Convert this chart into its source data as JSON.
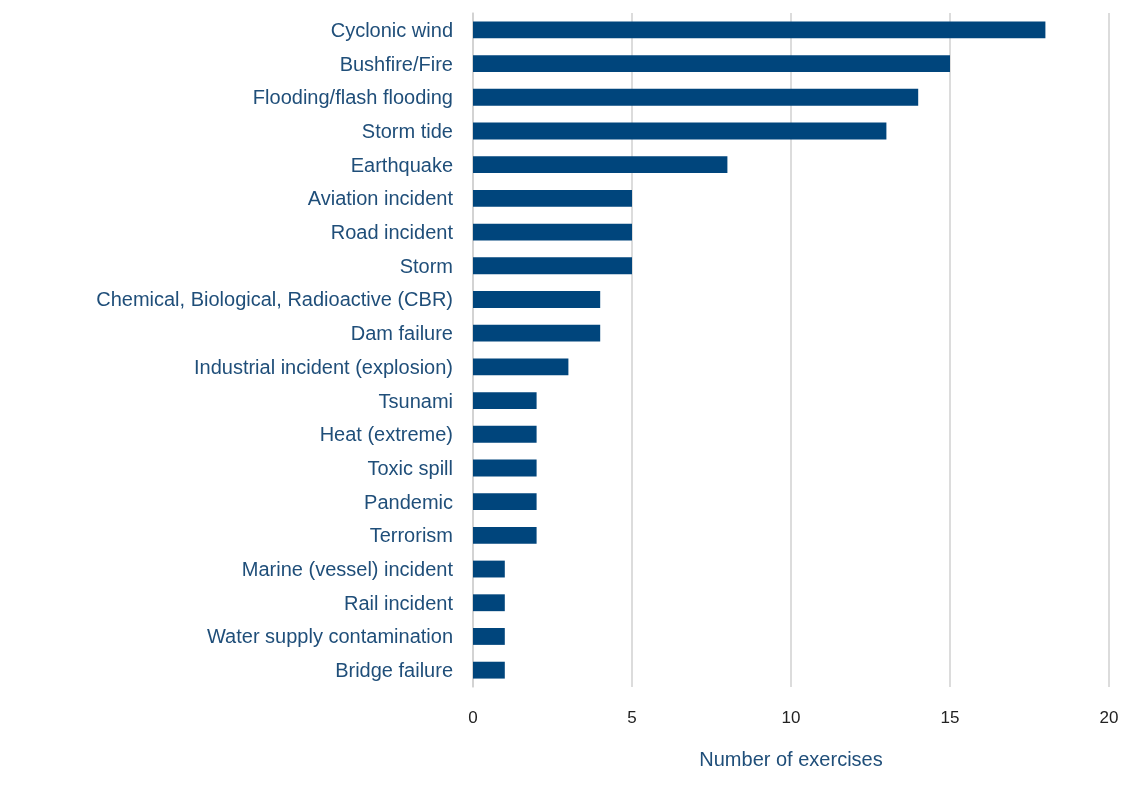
{
  "chart_data": {
    "type": "bar",
    "orientation": "horizontal",
    "xlabel": "Number of exercises",
    "categories": [
      "Cyclonic wind",
      "Bushfire/Fire",
      "Flooding/flash flooding",
      "Storm tide",
      "Earthquake",
      "Aviation incident",
      "Road incident",
      "Storm",
      "Chemical, Biological, Radioactive (CBR)",
      "Dam failure",
      "Industrial incident (explosion)",
      "Tsunami",
      "Heat (extreme)",
      "Toxic spill",
      "Pandemic",
      "Terrorism",
      "Marine (vessel) incident",
      "Rail incident",
      "Water supply contamination",
      "Bridge failure"
    ],
    "values": [
      18,
      15,
      14,
      13,
      8,
      5,
      5,
      5,
      4,
      4,
      3,
      2,
      2,
      2,
      2,
      2,
      1,
      1,
      1,
      1
    ],
    "color": "#00457c",
    "xlim": [
      0,
      20
    ],
    "xticks": [
      0,
      5,
      10,
      15,
      20
    ],
    "grid": "x"
  }
}
